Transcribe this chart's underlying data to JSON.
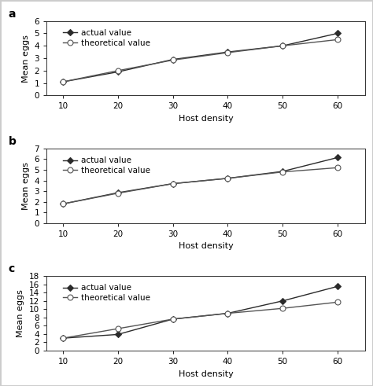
{
  "x": [
    10,
    20,
    30,
    40,
    50,
    60
  ],
  "panel_a": {
    "actual": [
      1.1,
      1.9,
      2.9,
      3.5,
      4.0,
      5.0
    ],
    "theoretical": [
      1.1,
      2.0,
      2.85,
      3.45,
      4.0,
      4.5
    ]
  },
  "panel_b": {
    "actual": [
      1.8,
      2.85,
      3.7,
      4.2,
      4.85,
      6.15
    ],
    "theoretical": [
      1.8,
      2.8,
      3.7,
      4.2,
      4.8,
      5.2
    ]
  },
  "panel_c": {
    "actual": [
      3.0,
      3.9,
      7.6,
      9.0,
      12.0,
      15.5
    ],
    "theoretical": [
      3.0,
      5.3,
      7.6,
      9.0,
      10.2,
      11.7
    ]
  },
  "ylim_a": [
    0,
    6
  ],
  "ylim_b": [
    0,
    7
  ],
  "ylim_c": [
    0,
    18
  ],
  "yticks_a": [
    0,
    1,
    2,
    3,
    4,
    5,
    6
  ],
  "yticks_b": [
    0,
    1,
    2,
    3,
    4,
    5,
    6,
    7
  ],
  "yticks_c": [
    0,
    2,
    4,
    6,
    8,
    10,
    12,
    14,
    16,
    18
  ],
  "xticks": [
    10,
    20,
    30,
    40,
    50,
    60
  ],
  "xlim": [
    7,
    65
  ],
  "xlabel": "Host density",
  "ylabel": "Mean eggs",
  "labels": [
    "actual value",
    "theoretical value"
  ],
  "panel_labels": [
    "a",
    "b",
    "c"
  ],
  "line_color_actual": "#2b2b2b",
  "line_color_theoretical": "#555555",
  "marker_actual": "D",
  "marker_theoretical": "o",
  "marker_size_actual": 4,
  "marker_size_theoretical": 5,
  "line_width": 1.0,
  "font_size_label": 8,
  "font_size_tick": 7.5,
  "font_size_panel": 10,
  "font_size_legend": 7.5,
  "spine_color": "#333333",
  "figure_border_color": "#cccccc"
}
